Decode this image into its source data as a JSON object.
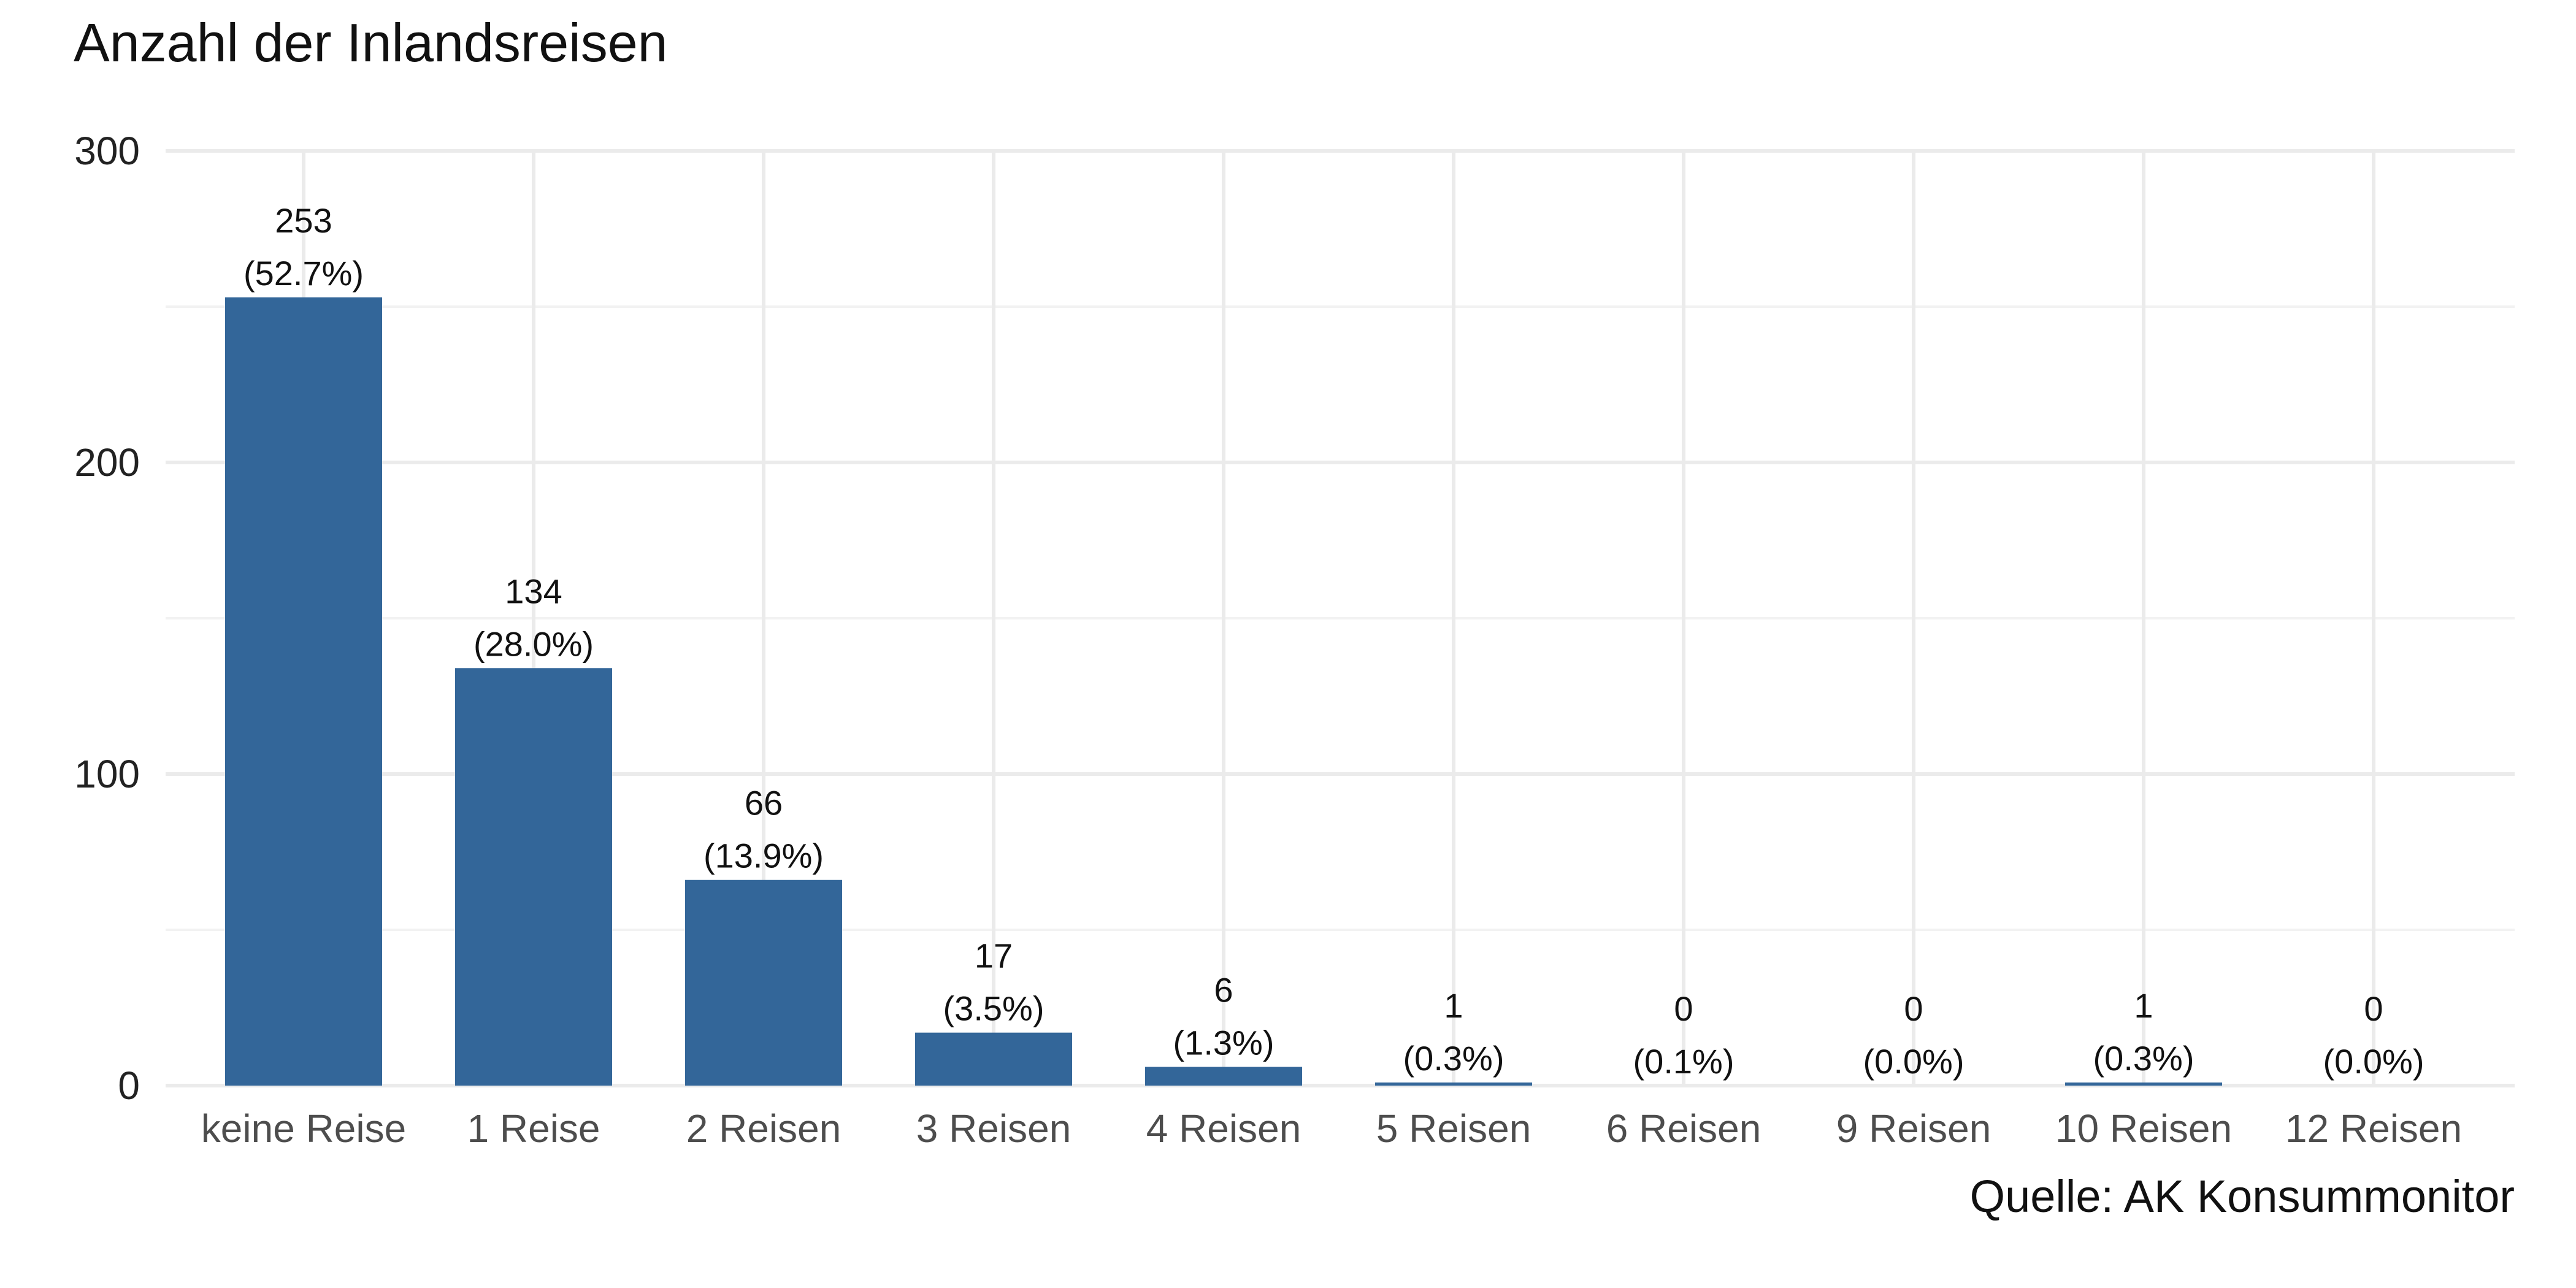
{
  "chart_data": {
    "type": "bar",
    "title": "Anzahl der Inlandsreisen",
    "caption": "Quelle: AK Konsummonitor",
    "xlabel": "",
    "ylabel": "",
    "ylim": [
      0,
      300
    ],
    "yticks": [
      "0",
      "100",
      "200",
      "300"
    ],
    "grid": true,
    "bar_color": "#336699",
    "categories": [
      "keine Reise",
      "1 Reise",
      "2 Reisen",
      "3 Reisen",
      "4 Reisen",
      "5 Reisen",
      "6 Reisen",
      "9 Reisen",
      "10 Reisen",
      "12 Reisen"
    ],
    "values": [
      253,
      134,
      66,
      17,
      6,
      1,
      0,
      0,
      1,
      0
    ],
    "count_labels": [
      "253",
      "134",
      "66",
      "17",
      "6",
      "1",
      "0",
      "0",
      "1",
      "0"
    ],
    "percent_labels": [
      "(52.7%)",
      "(28.0%)",
      "(13.9%)",
      "(3.5%)",
      "(1.3%)",
      "(0.3%)",
      "(0.1%)",
      "(0.0%)",
      "(0.3%)",
      "(0.0%)"
    ]
  }
}
